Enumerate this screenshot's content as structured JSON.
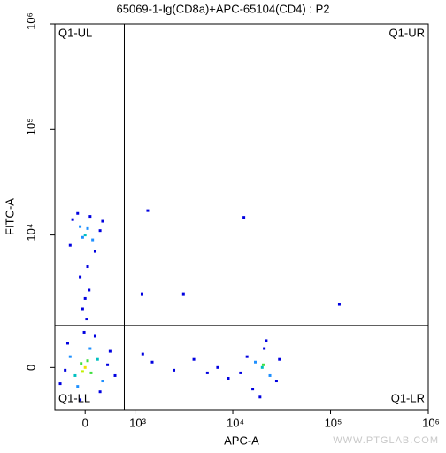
{
  "chart_data": {
    "type": "scatter",
    "title": "65069-1-Ig(CD8a)+APC-65104(CD4) : P2",
    "x_label": "APC-A",
    "y_label": "FITC-A",
    "xscale": "biexponential",
    "yscale": "biexponential",
    "xlim": [
      -607,
      1000000
    ],
    "ylim": [
      -1567,
      1000000
    ],
    "xticks": [
      0,
      {
        "value": 1000,
        "label": "10³"
      },
      {
        "value": 10000,
        "label": "10⁴"
      },
      {
        "value": 100000,
        "label": "10⁵"
      },
      {
        "value": 1000000,
        "label": "10⁶"
      }
    ],
    "yticks": [
      0,
      {
        "value": 10000,
        "label": "10⁴"
      },
      {
        "value": 100000,
        "label": "10⁵"
      },
      {
        "value": 1000000,
        "label": "10⁶"
      }
    ],
    "gate": {
      "x": 786,
      "y": 1390
    },
    "quadrants": {
      "ul": "Q1-UL",
      "ur": "Q1-UR",
      "ll": "Q1-LL",
      "lr": "Q1-LR"
    },
    "watermark": "WWW.PTGLAB.COM",
    "x": [
      0,
      -80,
      120,
      -200,
      250,
      -300,
      350,
      -150,
      100,
      -400,
      450,
      -350,
      300,
      500,
      -500,
      200,
      -100,
      600,
      50,
      -50,
      0,
      -100,
      150,
      -250,
      300,
      -300,
      100,
      200,
      -150,
      350,
      -50,
      50,
      50,
      -100,
      80,
      0,
      -50,
      30,
      -20,
      20000,
      17000,
      24000,
      14000,
      28000,
      21000,
      16000,
      30000,
      12000,
      19000,
      22000,
      20500,
      1500,
      2500,
      4000,
      7000,
      9000,
      5500,
      1200,
      13000,
      1350,
      1180,
      3130,
      123000
    ],
    "y": [
      0,
      150,
      -200,
      -300,
      300,
      400,
      -500,
      -700,
      700,
      -100,
      100,
      900,
      -900,
      600,
      -600,
      1100,
      -1200,
      -300,
      250,
      -150,
      10000,
      12000,
      9000,
      14000,
      11000,
      8000,
      15000,
      7000,
      16000,
      13500,
      9500,
      11500,
      5000,
      4000,
      3000,
      2500,
      2000,
      1600,
      1200,
      0,
      200,
      -300,
      400,
      -500,
      700,
      -800,
      300,
      -200,
      -1100,
      1000,
      100,
      200,
      -100,
      300,
      0,
      -400,
      -200,
      500,
      14700,
      17000,
      2770,
      2770,
      2200
    ],
    "point_colors": [
      "#f0e000",
      "#40e040",
      "#40e040",
      "#00c0c0",
      "#00c0c0",
      "#1e90ff",
      "#1e90ff",
      "#1e90ff",
      "#1e90ff",
      "#0000e0",
      "#0000e0",
      "#0000e0",
      "#0000e0",
      "#0000e0",
      "#0000e0",
      "#0000e0",
      "#0000e0",
      "#0000e0",
      "#40e040",
      "#c0f000",
      "#00c0c0",
      "#1e90ff",
      "#1e90ff",
      "#0000e0",
      "#0000e0",
      "#0000e0",
      "#0000e0",
      "#0000e0",
      "#0000e0",
      "#0000e0",
      "#1e90ff",
      "#1e90ff",
      "#0000e0",
      "#0000e0",
      "#0000e0",
      "#0000e0",
      "#0000e0",
      "#0000e0",
      "#0000e0",
      "#00c0c0",
      "#1e90ff",
      "#1e90ff",
      "#0000e0",
      "#0000e0",
      "#0000e0",
      "#0000e0",
      "#0000e0",
      "#0000e0",
      "#0000e0",
      "#0000e0",
      "#40e040",
      "#0000e0",
      "#0000e0",
      "#0000e0",
      "#0000e0",
      "#0000e0",
      "#0000e0",
      "#0000e0",
      "#0000e0",
      "#0000e0",
      "#0000e0",
      "#0000e0",
      "#0000e0"
    ]
  }
}
